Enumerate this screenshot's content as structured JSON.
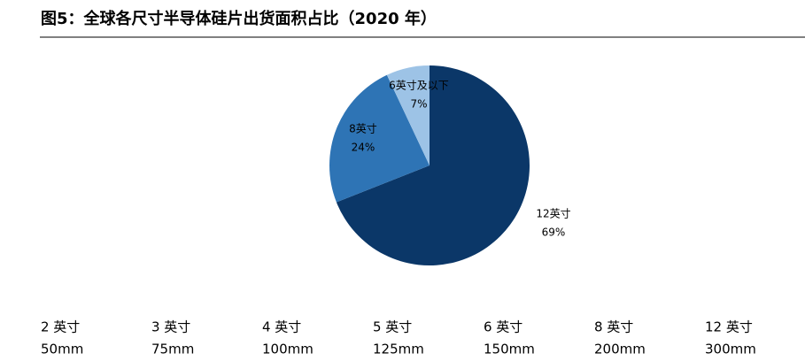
{
  "chart_data": {
    "type": "pie",
    "title": "图5：全球各尺寸半导体硅片出货面积占比（2020 年）",
    "categories": [
      "12英寸",
      "8英寸",
      "6英寸及以下"
    ],
    "values": [
      69,
      24,
      7
    ],
    "value_labels": [
      "69%",
      "24%",
      "7%"
    ],
    "colors": [
      "#0b3768",
      "#2e74b5",
      "#9dc3e6"
    ]
  },
  "size_table": {
    "sizes": [
      "2 英寸",
      "3 英寸",
      "4 英寸",
      "5 英寸",
      "6 英寸",
      "8 英寸",
      "12 英寸"
    ],
    "diameters": [
      "50mm",
      "75mm",
      "100mm",
      "125mm",
      "150mm",
      "200mm",
      "300mm"
    ]
  }
}
